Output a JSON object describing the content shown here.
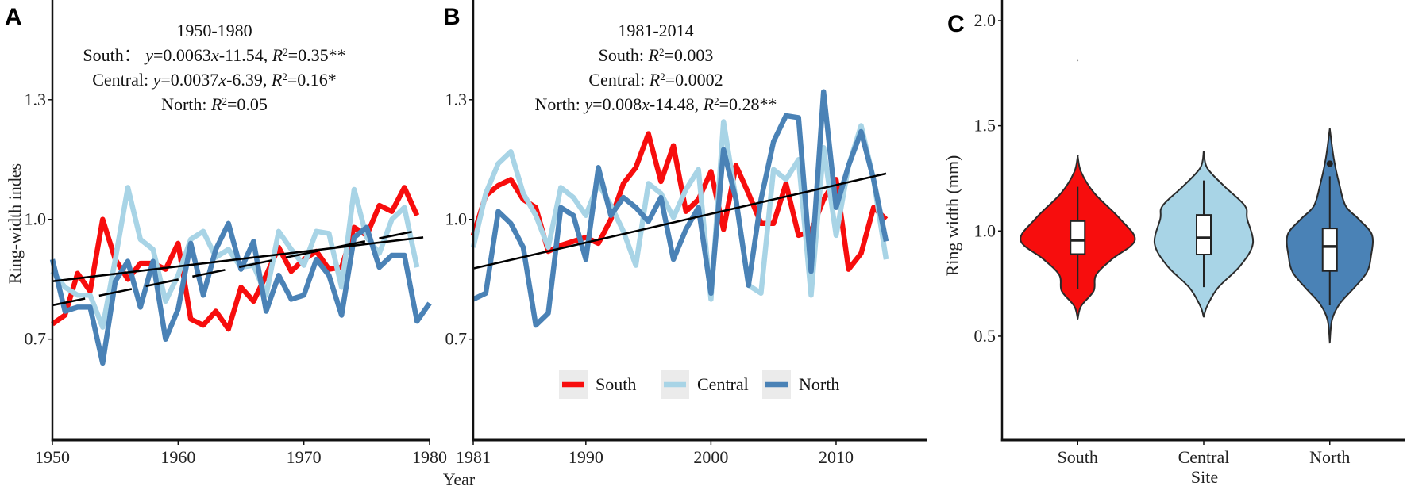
{
  "colors": {
    "South": "#f70d0d",
    "Central": "#a8d4e6",
    "North": "#4a82b6",
    "trend": "#000000",
    "legend_key_bg": "#ebebeb",
    "outline": "#2b2b2b"
  },
  "chart_data": [
    {
      "panel": "A",
      "type": "line",
      "xlabel": "Year",
      "ylabel": "Ring-width indes",
      "xlim": [
        1950,
        1980
      ],
      "ylim": [
        0.447,
        1.55
      ],
      "xticks": [
        1950,
        1960,
        1970,
        1980
      ],
      "yticks": [
        "0.7",
        "1.0",
        "1.3"
      ],
      "annotation": [
        [
          {
            "t": "1950-1980"
          }
        ],
        [
          {
            "t": "South：  "
          },
          {
            "t": "y",
            "i": true
          },
          {
            "t": "=0.0063"
          },
          {
            "t": "x",
            "i": true
          },
          {
            "t": "-11.54, "
          },
          {
            "t": "R",
            "i": true
          },
          {
            "t": "2",
            "sup": true
          },
          {
            "t": "=0.35**"
          }
        ],
        [
          {
            "t": "Central: "
          },
          {
            "t": "y",
            "i": true
          },
          {
            "t": "=0.0037"
          },
          {
            "t": "x",
            "i": true
          },
          {
            "t": "-6.39, "
          },
          {
            "t": "R",
            "i": true
          },
          {
            "t": "2",
            "sup": true
          },
          {
            "t": "=0.16*"
          }
        ],
        [
          {
            "t": "North:  "
          },
          {
            "t": "R",
            "i": true
          },
          {
            "t": "2",
            "sup": true
          },
          {
            "t": "=0.05"
          }
        ]
      ],
      "series": [
        {
          "name": "South",
          "x0": 1950,
          "values": [
            0.738,
            0.76,
            0.865,
            0.82,
            1.0,
            0.9,
            0.85,
            0.89,
            0.89,
            0.875,
            0.94,
            0.75,
            0.735,
            0.77,
            0.725,
            0.83,
            0.795,
            0.86,
            0.93,
            0.87,
            0.9,
            0.92,
            0.875,
            0.88,
            0.98,
            0.96,
            1.035,
            1.02,
            1.08,
            1.01
          ]
        },
        {
          "name": "Central",
          "x0": 1950,
          "values": [
            0.87,
            0.83,
            0.81,
            0.81,
            0.73,
            0.9,
            1.08,
            0.95,
            0.925,
            0.795,
            0.86,
            0.95,
            0.97,
            0.905,
            0.925,
            0.88,
            0.885,
            0.81,
            0.97,
            0.925,
            0.885,
            0.97,
            0.965,
            0.83,
            1.075,
            0.955,
            0.915,
            1.0,
            1.03,
            0.88
          ]
        },
        {
          "name": "North",
          "x0": 1950,
          "values": [
            0.9,
            0.77,
            0.78,
            0.78,
            0.64,
            0.845,
            0.895,
            0.78,
            0.895,
            0.7,
            0.775,
            0.94,
            0.81,
            0.925,
            0.99,
            0.875,
            0.945,
            0.77,
            0.86,
            0.8,
            0.81,
            0.9,
            0.86,
            0.76,
            0.955,
            0.98,
            0.88,
            0.91,
            0.91,
            0.745,
            0.79
          ]
        }
      ],
      "trends": [
        {
          "name": "South",
          "style": "dashed",
          "from": [
            1950,
            0.785
          ],
          "to": [
            1979.5,
            0.975
          ]
        },
        {
          "name": "Central",
          "style": "solid",
          "from": [
            1950,
            0.845
          ],
          "to": [
            1979.5,
            0.955
          ]
        }
      ]
    },
    {
      "panel": "B",
      "type": "line",
      "xlabel": "Year",
      "xlim": [
        1981,
        2017.3
      ],
      "ylim": [
        0.447,
        1.55
      ],
      "xticks": [
        1981,
        1990,
        2000,
        2010
      ],
      "yticks": [
        "0.7",
        "1.0",
        "1.3"
      ],
      "legend": {
        "placement": "bottom-center",
        "entries": [
          "South",
          "Central",
          "North"
        ]
      },
      "annotation": [
        [
          {
            "t": "1981-2014"
          }
        ],
        [
          {
            "t": "South: "
          },
          {
            "t": "R",
            "i": true
          },
          {
            "t": "2",
            "sup": true
          },
          {
            "t": "=0.003"
          }
        ],
        [
          {
            "t": "Central: "
          },
          {
            "t": "R",
            "i": true
          },
          {
            "t": "2",
            "sup": true
          },
          {
            "t": "=0.0002"
          }
        ],
        [
          {
            "t": "North: "
          },
          {
            "t": "y",
            "i": true
          },
          {
            "t": "=0.008"
          },
          {
            "t": "x",
            "i": true
          },
          {
            "t": "-14.48, "
          },
          {
            "t": "R",
            "i": true
          },
          {
            "t": "2",
            "sup": true
          },
          {
            "t": "=0.28**"
          }
        ]
      ],
      "series": [
        {
          "name": "South",
          "x0": 1981,
          "values": [
            0.96,
            1.06,
            1.085,
            1.1,
            1.05,
            1.03,
            0.92,
            0.935,
            0.945,
            0.955,
            0.94,
            1.0,
            1.09,
            1.13,
            1.215,
            1.095,
            1.185,
            1.02,
            1.05,
            1.12,
            0.975,
            1.135,
            1.065,
            0.99,
            0.99,
            1.09,
            0.96,
            0.97,
            1.05,
            1.1,
            0.875,
            0.915,
            1.03,
            1.0
          ]
        },
        {
          "name": "Central",
          "x0": 1981,
          "values": [
            0.93,
            1.065,
            1.14,
            1.17,
            1.065,
            1.01,
            0.93,
            1.08,
            1.055,
            1.01,
            1.09,
            1.035,
            0.97,
            0.885,
            1.09,
            1.065,
            1.005,
            1.075,
            1.125,
            0.8,
            1.245,
            1.05,
            0.835,
            0.815,
            1.125,
            1.1,
            1.15,
            0.81,
            1.18,
            0.96,
            1.135,
            1.235,
            1.1,
            0.9
          ]
        },
        {
          "name": "North",
          "x0": 1981,
          "values": [
            0.8,
            0.815,
            1.02,
            0.99,
            0.93,
            0.735,
            0.765,
            1.03,
            1.01,
            0.9,
            1.13,
            1.01,
            1.055,
            1.03,
            0.995,
            1.055,
            0.9,
            0.975,
            1.03,
            0.815,
            1.175,
            1.05,
            0.835,
            1.05,
            1.195,
            1.26,
            1.255,
            0.87,
            1.32,
            1.03,
            1.135,
            1.22,
            1.1,
            0.945
          ]
        }
      ],
      "trends": [
        {
          "name": "North",
          "style": "solid",
          "from": [
            1981,
            0.877
          ],
          "to": [
            2014,
            1.115
          ]
        }
      ]
    },
    {
      "panel": "C",
      "type": "violin",
      "xlabel": "Site",
      "ylabel": "Ring width (mm)",
      "ylim": [
        0.006,
        2.098
      ],
      "yticks": [
        "0.5",
        "1.0",
        "1.5",
        "2.0"
      ],
      "categories": [
        "South",
        "Central",
        "North"
      ],
      "violins": [
        {
          "name": "South",
          "box": {
            "whisker_low": 0.722,
            "q1": 0.89,
            "median": 0.956,
            "q3": 1.047,
            "whisker_high": 1.21
          },
          "outliers": [
            1.81
          ],
          "outlier_style": "tiny",
          "density": [
            [
              1.355,
              0
            ],
            [
              1.28,
              0.06
            ],
            [
              1.18,
              0.29
            ],
            [
              1.058,
              0.74
            ],
            [
              0.956,
              1.0
            ],
            [
              0.866,
              0.6
            ],
            [
              0.79,
              0.32
            ],
            [
              0.715,
              0.28
            ],
            [
              0.643,
              0.06
            ],
            [
              0.583,
              0
            ]
          ]
        },
        {
          "name": "Central",
          "box": {
            "whisker_low": 0.733,
            "q1": 0.888,
            "median": 0.967,
            "q3": 1.076,
            "whisker_high": 1.24
          },
          "outliers": [],
          "outlier_style": "dot",
          "density": [
            [
              1.38,
              0
            ],
            [
              1.3,
              0.06
            ],
            [
              1.21,
              0.37
            ],
            [
              1.12,
              0.72
            ],
            [
              1.058,
              0.76
            ],
            [
              0.94,
              0.86
            ],
            [
              0.835,
              0.64
            ],
            [
              0.73,
              0.25
            ],
            [
              0.643,
              0.06
            ],
            [
              0.59,
              0
            ]
          ]
        },
        {
          "name": "North",
          "box": {
            "whisker_low": 0.647,
            "q1": 0.81,
            "median": 0.926,
            "q3": 1.012,
            "whisker_high": 1.26
          },
          "outliers": [
            1.32
          ],
          "outlier_style": "dot",
          "density": [
            [
              1.487,
              0
            ],
            [
              1.344,
              0.07
            ],
            [
              1.218,
              0.17
            ],
            [
              1.118,
              0.28
            ],
            [
              1.055,
              0.51
            ],
            [
              0.98,
              0.74
            ],
            [
              0.879,
              0.72
            ],
            [
              0.804,
              0.65
            ],
            [
              0.728,
              0.42
            ],
            [
              0.653,
              0.17
            ],
            [
              0.578,
              0.04
            ],
            [
              0.471,
              0
            ]
          ]
        }
      ]
    }
  ]
}
